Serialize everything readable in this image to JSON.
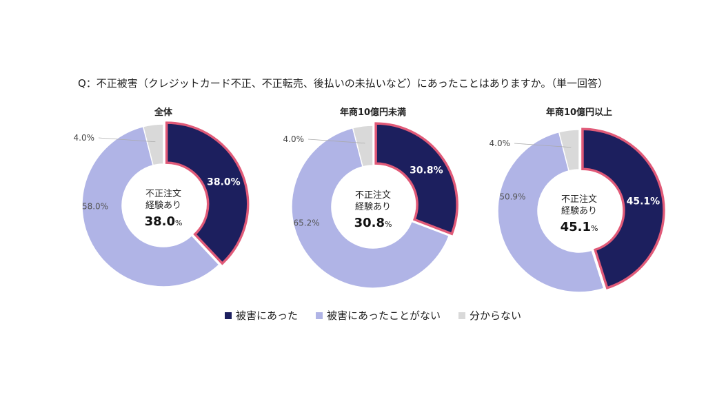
{
  "question": "Q：不正被害（クレジットカード不正、不正転売、後払いの未払いなど）にあったことはありますか。（単一回答）",
  "colors": {
    "damaged": "#1c1f5e",
    "not_damaged": "#b0b4e6",
    "unknown": "#d9d9d9",
    "highlight": "#e05a78"
  },
  "chart_data": [
    {
      "type": "pie",
      "title": "全体",
      "center_label": [
        "不正注文",
        "経験あり"
      ],
      "center_value": "38.0",
      "center_unit": "%",
      "categories": [
        "被害にあった",
        "被害にあったことがない",
        "分からない"
      ],
      "values": [
        38.0,
        58.0,
        4.0
      ],
      "labels": [
        "38.0%",
        "58.0%",
        "4.0%"
      ]
    },
    {
      "type": "pie",
      "title": "年商10億円未満",
      "center_label": [
        "不正注文",
        "経験あり"
      ],
      "center_value": "30.8",
      "center_unit": "%",
      "categories": [
        "被害にあった",
        "被害にあったことがない",
        "分からない"
      ],
      "values": [
        30.8,
        65.2,
        4.0
      ],
      "labels": [
        "30.8%",
        "65.2%",
        "4.0%"
      ]
    },
    {
      "type": "pie",
      "title": "年商10億円以上",
      "center_label": [
        "不正注文",
        "経験あり"
      ],
      "center_value": "45.1",
      "center_unit": "%",
      "categories": [
        "被害にあった",
        "被害にあったことがない",
        "分からない"
      ],
      "values": [
        45.1,
        50.9,
        4.0
      ],
      "labels": [
        "45.1%",
        "50.9%",
        "4.0%"
      ]
    }
  ],
  "legend": [
    "被害にあった",
    "被害にあったことがない",
    "分からない"
  ]
}
